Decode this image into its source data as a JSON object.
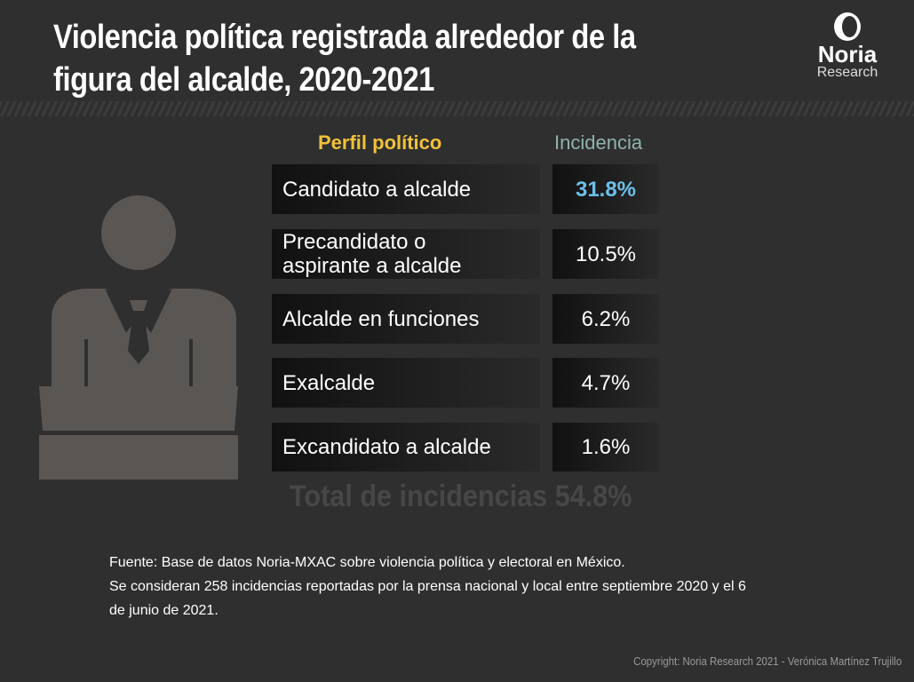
{
  "title": "Violencia política registrada alrededor de la figura del alcalde, 2020-2021",
  "logo": {
    "name": "Noria",
    "sub": "Research"
  },
  "colors": {
    "background": "#2f2f2f",
    "header_profile": "#f0c13a",
    "header_incidence": "#8fb3ad",
    "highlight": "#6cc0e8",
    "icon": "#5a5654"
  },
  "chart_data": {
    "type": "table",
    "columns": [
      "Perfil político",
      "Incidencia"
    ],
    "rows": [
      {
        "label": "Candidato a alcalde",
        "value": "31.8%",
        "highlight": true
      },
      {
        "label": "Precandidato o aspirante a alcalde",
        "value": "10.5%"
      },
      {
        "label": "Alcalde en funciones",
        "value": "6.2%"
      },
      {
        "label": "Exalcalde",
        "value": "4.7%"
      },
      {
        "label": "Excandidato a alcalde",
        "value": "1.6%"
      }
    ],
    "total": "Total de incidencias 54.8%"
  },
  "footer": {
    "line1": "Fuente: Base de datos Noria-MXAC sobre violencia política y electoral en México.",
    "line2": "Se consideran 258 incidencias reportadas por la prensa nacional y local entre septiembre 2020 y el 6 de junio de 2021."
  },
  "copyright": "Copyright: Noria Research 2021 - Verónica Martínez Trujillo"
}
